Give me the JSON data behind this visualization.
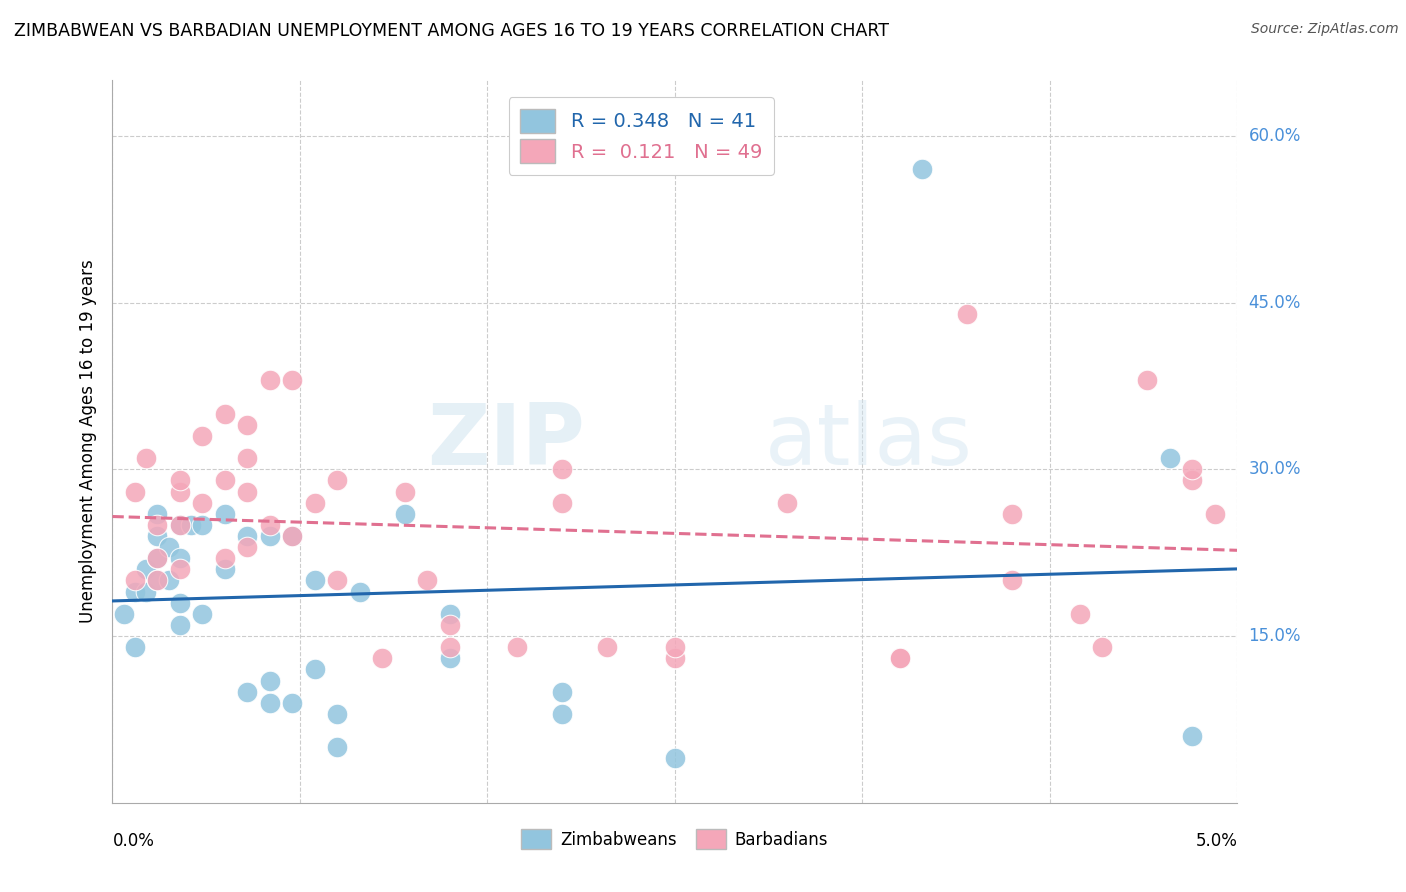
{
  "title": "ZIMBABWEAN VS BARBADIAN UNEMPLOYMENT AMONG AGES 16 TO 19 YEARS CORRELATION CHART",
  "source": "Source: ZipAtlas.com",
  "ylabel": "Unemployment Among Ages 16 to 19 years",
  "legend_label1": "Zimbabweans",
  "legend_label2": "Barbadians",
  "r1": 0.348,
  "n1": 41,
  "r2": 0.121,
  "n2": 49,
  "color_blue": "#92c5de",
  "color_pink": "#f4a7b9",
  "trend_blue": "#2166ac",
  "trend_pink": "#e07090",
  "watermark_zip": "ZIP",
  "watermark_atlas": "atlas",
  "background_color": "#ffffff",
  "grid_color": "#cccccc",
  "xlim": [
    0,
    0.05
  ],
  "ylim": [
    0,
    0.65
  ],
  "ytick_vals": [
    0.15,
    0.3,
    0.45,
    0.6
  ],
  "ytick_labels": [
    "15.0%",
    "30.0%",
    "45.0%",
    "60.0%"
  ],
  "zim_x": [
    0.0005,
    0.001,
    0.001,
    0.0015,
    0.0015,
    0.002,
    0.002,
    0.002,
    0.002,
    0.0025,
    0.0025,
    0.003,
    0.003,
    0.003,
    0.003,
    0.0035,
    0.004,
    0.004,
    0.005,
    0.005,
    0.006,
    0.006,
    0.007,
    0.007,
    0.007,
    0.008,
    0.008,
    0.009,
    0.009,
    0.01,
    0.01,
    0.011,
    0.013,
    0.015,
    0.015,
    0.02,
    0.02,
    0.025,
    0.036,
    0.047,
    0.048
  ],
  "zim_y": [
    0.17,
    0.14,
    0.19,
    0.19,
    0.21,
    0.2,
    0.22,
    0.24,
    0.26,
    0.2,
    0.23,
    0.16,
    0.18,
    0.22,
    0.25,
    0.25,
    0.17,
    0.25,
    0.21,
    0.26,
    0.24,
    0.1,
    0.09,
    0.11,
    0.24,
    0.09,
    0.24,
    0.2,
    0.12,
    0.05,
    0.08,
    0.19,
    0.26,
    0.13,
    0.17,
    0.08,
    0.1,
    0.04,
    0.57,
    0.31,
    0.06
  ],
  "bar_x": [
    0.001,
    0.001,
    0.0015,
    0.002,
    0.002,
    0.002,
    0.003,
    0.003,
    0.003,
    0.003,
    0.004,
    0.004,
    0.005,
    0.005,
    0.005,
    0.006,
    0.006,
    0.006,
    0.006,
    0.007,
    0.007,
    0.008,
    0.008,
    0.009,
    0.01,
    0.01,
    0.012,
    0.013,
    0.014,
    0.015,
    0.015,
    0.018,
    0.02,
    0.02,
    0.022,
    0.025,
    0.025,
    0.03,
    0.035,
    0.035,
    0.038,
    0.04,
    0.04,
    0.043,
    0.044,
    0.046,
    0.048,
    0.048,
    0.049
  ],
  "bar_y": [
    0.2,
    0.28,
    0.31,
    0.2,
    0.22,
    0.25,
    0.21,
    0.25,
    0.28,
    0.29,
    0.27,
    0.33,
    0.22,
    0.29,
    0.35,
    0.23,
    0.28,
    0.31,
    0.34,
    0.25,
    0.38,
    0.24,
    0.38,
    0.27,
    0.2,
    0.29,
    0.13,
    0.28,
    0.2,
    0.14,
    0.16,
    0.14,
    0.3,
    0.27,
    0.14,
    0.13,
    0.14,
    0.27,
    0.13,
    0.13,
    0.44,
    0.26,
    0.2,
    0.17,
    0.14,
    0.38,
    0.29,
    0.3,
    0.26
  ]
}
